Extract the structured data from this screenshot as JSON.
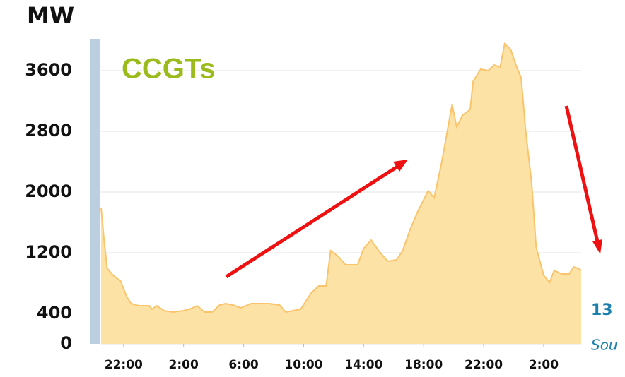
{
  "chart_data": {
    "type": "area",
    "y_label": "MW",
    "series_label": "CCGTs",
    "annotations": [
      "13",
      "Sou"
    ],
    "x": [
      20.5,
      20.7,
      20.9,
      21.3,
      21.8,
      22.2,
      22.5,
      23.0,
      23.7,
      23.9,
      24.2,
      24.7,
      25.3,
      26.0,
      26.5,
      26.9,
      27.4,
      27.9,
      28.4,
      28.8,
      29.3,
      29.8,
      30.5,
      31.7,
      32.4,
      32.8,
      33.3,
      33.8,
      34.5,
      35.0,
      35.5,
      35.8,
      36.3,
      36.8,
      37.6,
      38.0,
      38.5,
      39.0,
      39.6,
      40.2,
      40.6,
      41.1,
      41.6,
      42.3,
      42.7,
      43.2,
      43.5,
      43.9,
      44.2,
      44.6,
      45.1,
      45.3,
      45.8,
      46.3,
      46.7,
      47.1,
      47.4,
      47.8,
      48.2,
      48.5,
      48.8,
      49.2,
      49.5,
      50.0,
      50.4,
      50.7,
      51.2,
      51.7,
      52.0,
      52.3,
      52.5
    ],
    "values": [
      1786,
      1367,
      995,
      902,
      828,
      623,
      530,
      502,
      502,
      456,
      502,
      437,
      419,
      437,
      465,
      502,
      419,
      419,
      512,
      530,
      512,
      474,
      530,
      530,
      512,
      419,
      437,
      456,
      670,
      763,
      763,
      1228,
      1153,
      1042,
      1042,
      1256,
      1367,
      1228,
      1088,
      1107,
      1228,
      1507,
      1740,
      2019,
      1926,
      2391,
      2716,
      3153,
      2856,
      3014,
      3088,
      3460,
      3619,
      3600,
      3674,
      3647,
      3953,
      3879,
      3647,
      3507,
      2809,
      2112,
      1274,
      902,
      809,
      967,
      921,
      921,
      1014,
      995,
      967
    ],
    "color": "#fde2a6",
    "line_color": "#f9c46c",
    "xlim": [
      20.5,
      52.5
    ],
    "xticks": [
      {
        "value": 22,
        "label": "22:00"
      },
      {
        "value": 26,
        "label": "2:00"
      },
      {
        "value": 30,
        "label": "6:00"
      },
      {
        "value": 34,
        "label": "10:00"
      },
      {
        "value": 38,
        "label": "14:00"
      },
      {
        "value": 42,
        "label": "18:00"
      },
      {
        "value": 46,
        "label": "22:00"
      },
      {
        "value": 50,
        "label": "2:00"
      }
    ],
    "ylim": [
      0,
      4000
    ],
    "yticks": [
      0,
      400,
      1200,
      2000,
      2800,
      3600
    ],
    "grid": true
  }
}
